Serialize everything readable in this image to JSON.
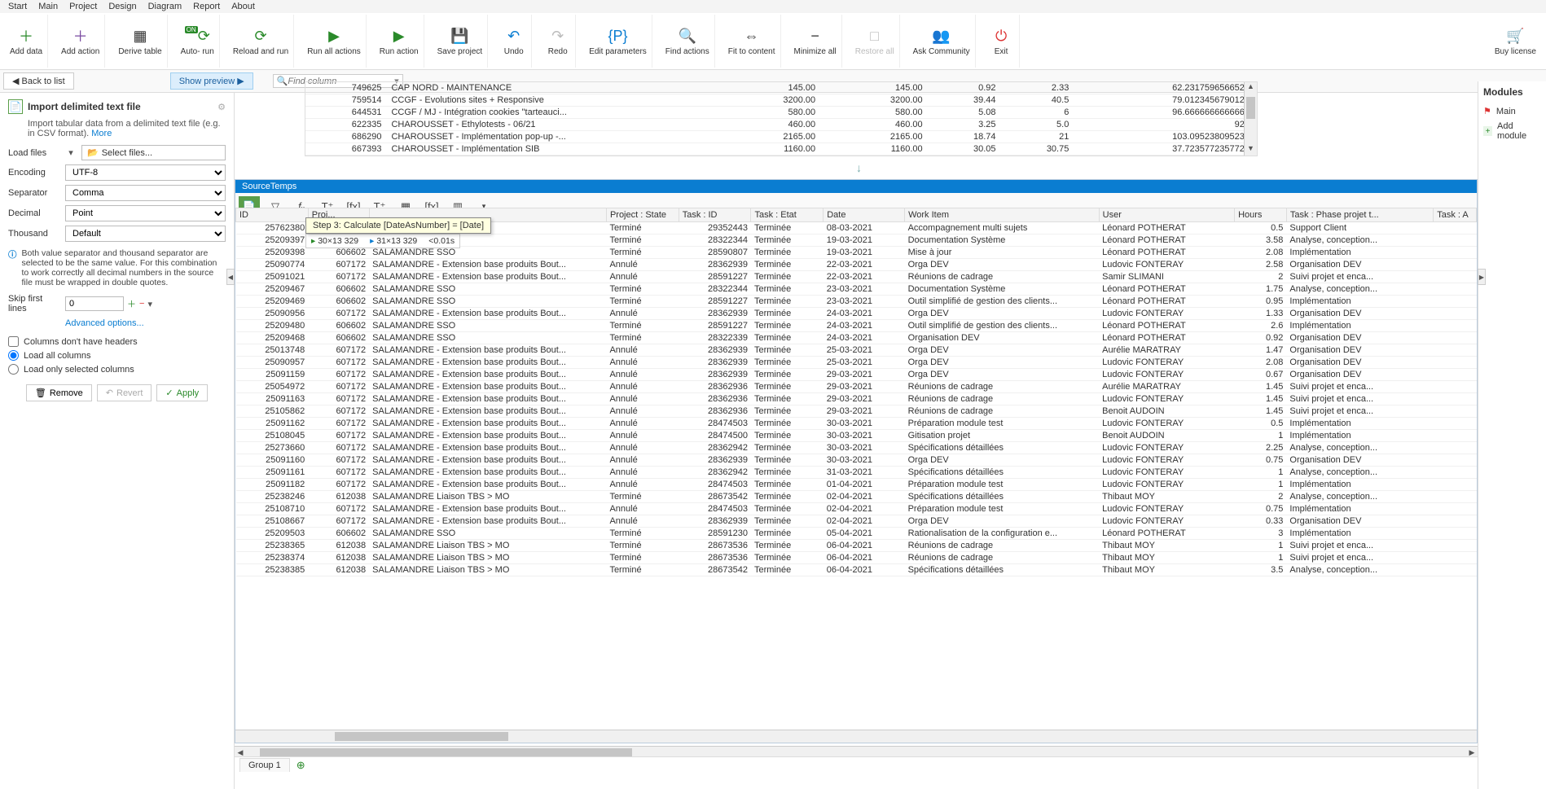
{
  "topmenu": [
    "Start",
    "Main",
    "Project",
    "Design",
    "Diagram",
    "Report",
    "About"
  ],
  "ribbon": [
    {
      "label": "Add data",
      "color": "#2a8a2a",
      "glyph": "＋"
    },
    {
      "label": "Add action",
      "color": "#7a4aa0",
      "glyph": "＋"
    },
    {
      "label": "Derive table",
      "color": "#333",
      "glyph": "▦"
    },
    {
      "label": "Auto- run",
      "color": "#2a8a2a",
      "glyph": "⟳",
      "badge": "ON"
    },
    {
      "label": "Reload and run",
      "color": "#2a8a2a",
      "glyph": "⟳"
    },
    {
      "label": "Run all actions",
      "color": "#2a8a2a",
      "glyph": "▶"
    },
    {
      "label": "Run action",
      "color": "#2a8a2a",
      "glyph": "▶"
    },
    {
      "label": "Save project",
      "color": "#0a7dd1",
      "glyph": "💾"
    },
    {
      "label": "Undo",
      "color": "#0a7dd1",
      "glyph": "↶"
    },
    {
      "label": "Redo",
      "color": "#bbb",
      "glyph": "↷"
    },
    {
      "label": "Edit parameters",
      "color": "#0a7dd1",
      "glyph": "{P}"
    },
    {
      "label": "Find actions",
      "color": "#333",
      "glyph": "🔍"
    },
    {
      "label": "Fit to content",
      "color": "#333",
      "glyph": "⇔"
    },
    {
      "label": "Minimize all",
      "color": "#333",
      "glyph": "−",
      "side": true
    },
    {
      "label": "Restore all",
      "color": "#bbb",
      "glyph": "□",
      "side": true,
      "disabled": true
    },
    {
      "label": "Ask Community",
      "color": "#0a7dd1",
      "glyph": "👥"
    },
    {
      "label": "Exit",
      "color": "#d33",
      "glyph": "⏻"
    },
    {
      "label": "Buy license",
      "color": "#2a8a2a",
      "glyph": "🛒",
      "right": true
    }
  ],
  "secbar": {
    "back": "Back to list",
    "preview": "Show preview",
    "find_placeholder": "Find column"
  },
  "leftpanel": {
    "title": "Import delimited text file",
    "desc": "Import tabular data from a delimited text file (e.g. in CSV format).",
    "more": "More",
    "loadfiles": "Load files",
    "selectfiles": "Select files...",
    "encoding_lbl": "Encoding",
    "encoding": "UTF-8",
    "separator_lbl": "Separator",
    "separator": "Comma",
    "decimal_lbl": "Decimal",
    "decimal": "Point",
    "thousand_lbl": "Thousand",
    "thousand": "Default",
    "info": "Both value separator and thousand separator are selected to be the same value. For this combination to work correctly all decimal numbers in the source file must be wrapped in double quotes.",
    "skip_lbl": "Skip first lines",
    "skip": "0",
    "adv": "Advanced options...",
    "noheaders": "Columns don't have headers",
    "loadall": "Load all columns",
    "loadsel": "Load only selected columns",
    "remove": "Remove",
    "revert": "Revert",
    "apply": "Apply"
  },
  "rightpanel": {
    "title": "Modules",
    "main": "Main",
    "add": "Add module"
  },
  "uptable": {
    "cols_w": [
      62,
      250,
      82,
      82,
      56,
      56,
      140
    ],
    "rows": [
      [
        "749625",
        "CAP NORD - MAINTENANCE",
        "145.00",
        "145.00",
        "0.92",
        "2.33",
        "62.231759656652..."
      ],
      [
        "759514",
        "CCGF - Evolutions sites + Responsive",
        "3200.00",
        "3200.00",
        "39.44",
        "40.5",
        "79.012345679012..."
      ],
      [
        "644531",
        "CCGF / MJ - Intégration cookies \"tarteauci...",
        "580.00",
        "580.00",
        "5.08",
        "6",
        "96.666666666666..."
      ],
      [
        "622335",
        "CHAROUSSET - Ethylotests - 06/21",
        "460.00",
        "460.00",
        "3.25",
        "5.0",
        "92.0"
      ],
      [
        "686290",
        "CHAROUSSET - Implémentation pop-up -...",
        "2165.00",
        "2165.00",
        "18.74",
        "21",
        "103.09523809523..."
      ],
      [
        "667393",
        "CHAROUSSET - Implémentation SIB",
        "1160.00",
        "1160.00",
        "30.05",
        "30.75",
        "37.723577235772..."
      ]
    ]
  },
  "source": {
    "title": "SourceTemps",
    "tooltip": "Step 3: Calculate [DateAsNumber] = [Date]",
    "dims_a": "30×13 329",
    "dims_b": "31×13 329",
    "dims_t": "<0.01s",
    "headers": [
      "ID",
      "Proj...",
      "",
      "Project : State",
      "Task : ID",
      "Task : Etat",
      "Date",
      "Work Item",
      "User",
      "Hours",
      "Task : Phase projet t...",
      "Task : A"
    ],
    "rows": [
      [
        "25762380",
        "",
        "",
        "Terminé",
        "29352443",
        "Terminée",
        "08-03-2021",
        "Accompagnement multi sujets",
        "Léonard POTHERAT",
        "0.5",
        "Support Client",
        ""
      ],
      [
        "25209397",
        "",
        "",
        "Terminé",
        "28322344",
        "Terminée",
        "19-03-2021",
        "Documentation Système",
        "Léonard POTHERAT",
        "3.58",
        "Analyse, conception...",
        ""
      ],
      [
        "25209398",
        "606602",
        "SALAMANDRE SSO",
        "Terminé",
        "28590807",
        "Terminée",
        "19-03-2021",
        "Mise à jour",
        "Léonard POTHERAT",
        "2.08",
        "Implémentation",
        ""
      ],
      [
        "25090774",
        "607172",
        "SALAMANDRE - Extension base produits Bout...",
        "Annulé",
        "28362939",
        "Terminée",
        "22-03-2021",
        "Orga DEV",
        "Ludovic FONTERAY",
        "2.58",
        "Organisation DEV",
        ""
      ],
      [
        "25091021",
        "607172",
        "SALAMANDRE - Extension base produits Bout...",
        "Annulé",
        "28591227",
        "Terminée",
        "22-03-2021",
        "Réunions de cadrage",
        "Samir SLIMANI",
        "2",
        "Suivi projet et enca...",
        ""
      ],
      [
        "25209467",
        "606602",
        "SALAMANDRE SSO",
        "Terminé",
        "28322344",
        "Terminée",
        "23-03-2021",
        "Documentation Système",
        "Léonard POTHERAT",
        "1.75",
        "Analyse, conception...",
        ""
      ],
      [
        "25209469",
        "606602",
        "SALAMANDRE SSO",
        "Terminé",
        "28591227",
        "Terminée",
        "23-03-2021",
        "Outil simplifié de gestion des clients...",
        "Léonard POTHERAT",
        "0.95",
        "Implémentation",
        ""
      ],
      [
        "25090956",
        "607172",
        "SALAMANDRE - Extension base produits Bout...",
        "Annulé",
        "28362939",
        "Terminée",
        "24-03-2021",
        "Orga DEV",
        "Ludovic FONTERAY",
        "1.33",
        "Organisation DEV",
        ""
      ],
      [
        "25209480",
        "606602",
        "SALAMANDRE SSO",
        "Terminé",
        "28591227",
        "Terminée",
        "24-03-2021",
        "Outil simplifié de gestion des clients...",
        "Léonard POTHERAT",
        "2.6",
        "Implémentation",
        ""
      ],
      [
        "25209468",
        "606602",
        "SALAMANDRE SSO",
        "Terminé",
        "28322339",
        "Terminée",
        "24-03-2021",
        "Organisation DEV",
        "Léonard POTHERAT",
        "0.92",
        "Organisation DEV",
        ""
      ],
      [
        "25013748",
        "607172",
        "SALAMANDRE - Extension base produits Bout...",
        "Annulé",
        "28362939",
        "Terminée",
        "25-03-2021",
        "Orga DEV",
        "Aurélie MARATRAY",
        "1.47",
        "Organisation DEV",
        ""
      ],
      [
        "25090957",
        "607172",
        "SALAMANDRE - Extension base produits Bout...",
        "Annulé",
        "28362939",
        "Terminée",
        "25-03-2021",
        "Orga DEV",
        "Ludovic FONTERAY",
        "2.08",
        "Organisation DEV",
        ""
      ],
      [
        "25091159",
        "607172",
        "SALAMANDRE - Extension base produits Bout...",
        "Annulé",
        "28362939",
        "Terminée",
        "29-03-2021",
        "Orga DEV",
        "Ludovic FONTERAY",
        "0.67",
        "Organisation DEV",
        ""
      ],
      [
        "25054972",
        "607172",
        "SALAMANDRE - Extension base produits Bout...",
        "Annulé",
        "28362936",
        "Terminée",
        "29-03-2021",
        "Réunions de cadrage",
        "Aurélie MARATRAY",
        "1.45",
        "Suivi projet et enca...",
        ""
      ],
      [
        "25091163",
        "607172",
        "SALAMANDRE - Extension base produits Bout...",
        "Annulé",
        "28362936",
        "Terminée",
        "29-03-2021",
        "Réunions de cadrage",
        "Ludovic FONTERAY",
        "1.45",
        "Suivi projet et enca...",
        ""
      ],
      [
        "25105862",
        "607172",
        "SALAMANDRE - Extension base produits Bout...",
        "Annulé",
        "28362936",
        "Terminée",
        "29-03-2021",
        "Réunions de cadrage",
        "Benoit AUDOIN",
        "1.45",
        "Suivi projet et enca...",
        ""
      ],
      [
        "25091162",
        "607172",
        "SALAMANDRE - Extension base produits Bout...",
        "Annulé",
        "28474503",
        "Terminée",
        "30-03-2021",
        "Préparation module test",
        "Ludovic FONTERAY",
        "0.5",
        "Implémentation",
        ""
      ],
      [
        "25108045",
        "607172",
        "SALAMANDRE - Extension base produits Bout...",
        "Annulé",
        "28474500",
        "Terminée",
        "30-03-2021",
        "Gitisation projet",
        "Benoit AUDOIN",
        "1",
        "Implémentation",
        ""
      ],
      [
        "25273660",
        "607172",
        "SALAMANDRE - Extension base produits Bout...",
        "Annulé",
        "28362942",
        "Terminée",
        "30-03-2021",
        "Spécifications détaillées",
        "Ludovic FONTERAY",
        "2.25",
        "Analyse, conception...",
        ""
      ],
      [
        "25091160",
        "607172",
        "SALAMANDRE - Extension base produits Bout...",
        "Annulé",
        "28362939",
        "Terminée",
        "30-03-2021",
        "Orga DEV",
        "Ludovic FONTERAY",
        "0.75",
        "Organisation DEV",
        ""
      ],
      [
        "25091161",
        "607172",
        "SALAMANDRE - Extension base produits Bout...",
        "Annulé",
        "28362942",
        "Terminée",
        "31-03-2021",
        "Spécifications détaillées",
        "Ludovic FONTERAY",
        "1",
        "Analyse, conception...",
        ""
      ],
      [
        "25091182",
        "607172",
        "SALAMANDRE - Extension base produits Bout...",
        "Annulé",
        "28474503",
        "Terminée",
        "01-04-2021",
        "Préparation module test",
        "Ludovic FONTERAY",
        "1",
        "Implémentation",
        ""
      ],
      [
        "25238246",
        "612038",
        "SALAMANDRE Liaison TBS > MO",
        "Terminé",
        "28673542",
        "Terminée",
        "02-04-2021",
        "Spécifications détaillées",
        "Thibaut MOY",
        "2",
        "Analyse, conception...",
        ""
      ],
      [
        "25108710",
        "607172",
        "SALAMANDRE - Extension base produits Bout...",
        "Annulé",
        "28474503",
        "Terminée",
        "02-04-2021",
        "Préparation module test",
        "Ludovic FONTERAY",
        "0.75",
        "Implémentation",
        ""
      ],
      [
        "25108667",
        "607172",
        "SALAMANDRE - Extension base produits Bout...",
        "Annulé",
        "28362939",
        "Terminée",
        "02-04-2021",
        "Orga DEV",
        "Ludovic FONTERAY",
        "0.33",
        "Organisation DEV",
        ""
      ],
      [
        "25209503",
        "606602",
        "SALAMANDRE SSO",
        "Terminé",
        "28591230",
        "Terminée",
        "05-04-2021",
        "Rationalisation de la configuration e...",
        "Léonard POTHERAT",
        "3",
        "Implémentation",
        ""
      ],
      [
        "25238365",
        "612038",
        "SALAMANDRE Liaison TBS > MO",
        "Terminé",
        "28673536",
        "Terminée",
        "06-04-2021",
        "Réunions de cadrage",
        "Thibaut MOY",
        "1",
        "Suivi projet et enca...",
        ""
      ],
      [
        "25238374",
        "612038",
        "SALAMANDRE Liaison TBS > MO",
        "Terminé",
        "28673536",
        "Terminée",
        "06-04-2021",
        "Réunions de cadrage",
        "Thibaut MOY",
        "1",
        "Suivi projet et enca...",
        ""
      ],
      [
        "25238385",
        "612038",
        "SALAMANDRE Liaison TBS > MO",
        "Terminé",
        "28673542",
        "Terminée",
        "06-04-2021",
        "Spécifications détaillées",
        "Thibaut MOY",
        "3.5",
        "Analyse, conception...",
        ""
      ]
    ]
  },
  "grouptab": "Group 1"
}
